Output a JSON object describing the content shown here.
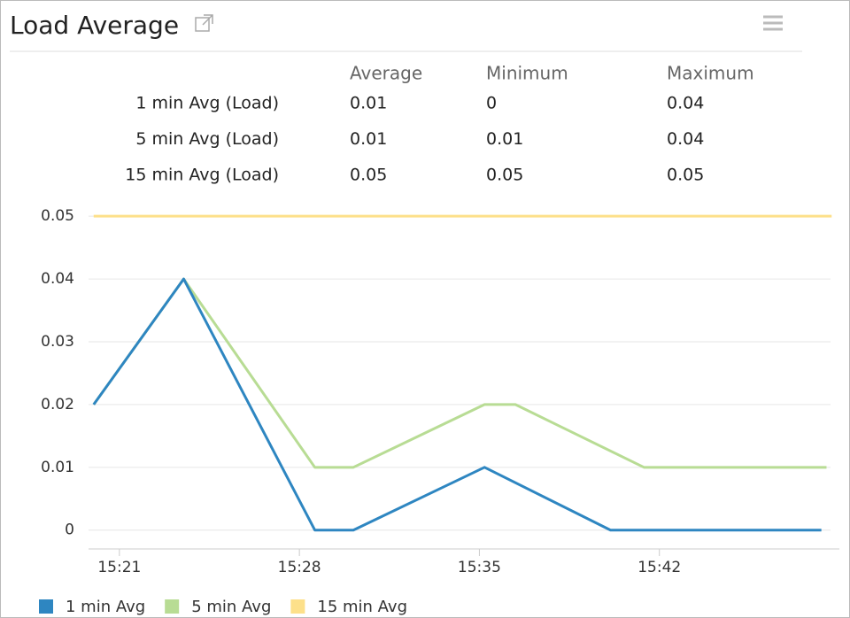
{
  "header": {
    "title": "Load Average"
  },
  "stats": {
    "columns": [
      "Average",
      "Minimum",
      "Maximum"
    ],
    "rows": [
      {
        "label": "1 min Avg (Load)",
        "values": [
          0.01,
          0,
          0.04
        ]
      },
      {
        "label": "5 min Avg (Load)",
        "values": [
          0.01,
          0.01,
          0.04
        ]
      },
      {
        "label": "15 min Avg (Load)",
        "values": [
          0.05,
          0.05,
          0.05
        ]
      }
    ]
  },
  "chart_data": {
    "type": "line",
    "xlim": [
      919.8,
      949
    ],
    "xticks": [
      {
        "value": 921,
        "label": "15:21"
      },
      {
        "value": 928,
        "label": "15:28"
      },
      {
        "value": 935,
        "label": "15:35"
      },
      {
        "value": 942,
        "label": "15:42"
      }
    ],
    "ylim": [
      -0.003,
      0.052
    ],
    "yticks": [
      0,
      0.01,
      0.02,
      0.03,
      0.04,
      0.05
    ],
    "grid": true,
    "legend": "bottom-left",
    "series": [
      {
        "name": "1 min Avg",
        "color": "#2e86c1",
        "x": [
          920,
          923.5,
          928.6,
          930.1,
          935.2,
          940.1,
          948.3
        ],
        "values": [
          0.02,
          0.04,
          0,
          0,
          0.01,
          0,
          0
        ]
      },
      {
        "name": "5 min Avg",
        "color": "#b8dc94",
        "x": [
          920,
          923.5,
          928.6,
          930.1,
          935.2,
          936.4,
          941.4,
          948.5
        ],
        "values": [
          0.02,
          0.04,
          0.01,
          0.01,
          0.02,
          0.02,
          0.01,
          0.01
        ]
      },
      {
        "name": "15 min Avg",
        "color": "#fde08a",
        "x": [
          920,
          948.7
        ],
        "values": [
          0.05,
          0.05
        ]
      }
    ]
  }
}
